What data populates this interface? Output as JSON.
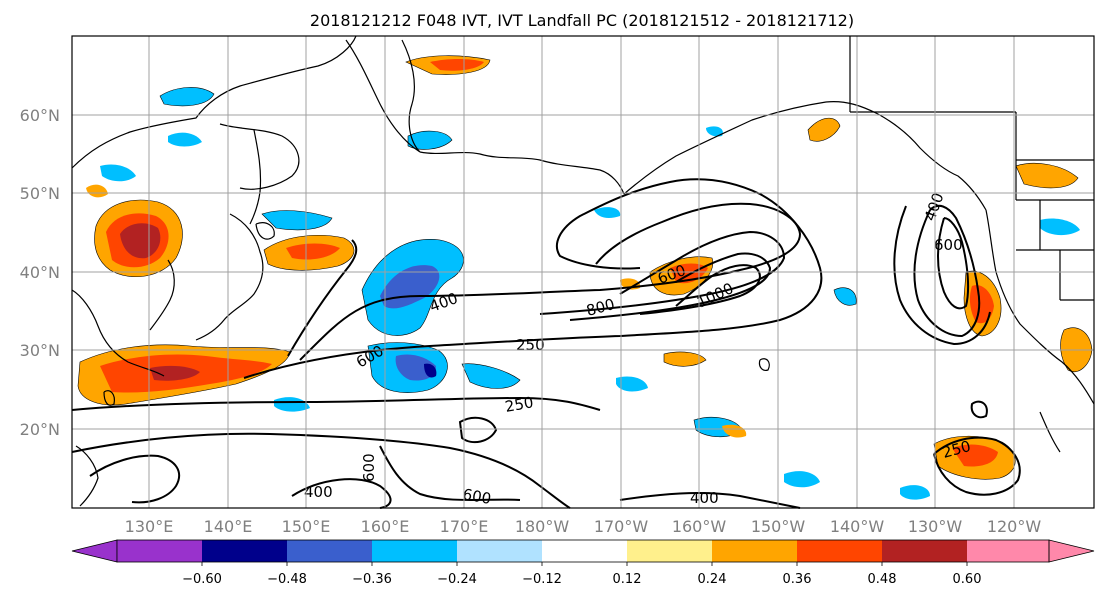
{
  "title": "2018121212 F048 IVT, IVT Landfall PC (2018121512 - 2018121712)",
  "map": {
    "lat_labels": [
      "60°N",
      "50°N",
      "40°N",
      "30°N",
      "20°N"
    ],
    "lon_labels": [
      "130°E",
      "140°E",
      "150°E",
      "160°E",
      "170°E",
      "180°W",
      "170°W",
      "160°W",
      "150°W",
      "140°W",
      "130°W",
      "120°W"
    ],
    "contour_labels": [
      "400",
      "600",
      "800",
      "1000",
      "250",
      "250",
      "600",
      "600",
      "400",
      "600",
      "400",
      "250",
      "400",
      "600"
    ],
    "grid": true
  },
  "colorbar": {
    "ticks": [
      "−0.60",
      "−0.48",
      "−0.36",
      "−0.24",
      "−0.12",
      "0.12",
      "0.24",
      "0.36",
      "0.48",
      "0.60"
    ],
    "colors": [
      "#9932cc",
      "#00008b",
      "#3a5fcd",
      "#00bfff",
      "#b0e2ff",
      "#ffffff",
      "#fff08c",
      "#ffa500",
      "#ff4500",
      "#b22222",
      "#ff88aa"
    ]
  },
  "colors": {
    "land_outline": "#000000",
    "grid": "#a0a0a0",
    "positive": [
      "#fff08c",
      "#ffa500",
      "#ff4500",
      "#b22222"
    ],
    "negative": [
      "#b0e2ff",
      "#00bfff",
      "#3a5fcd",
      "#00008b"
    ]
  }
}
